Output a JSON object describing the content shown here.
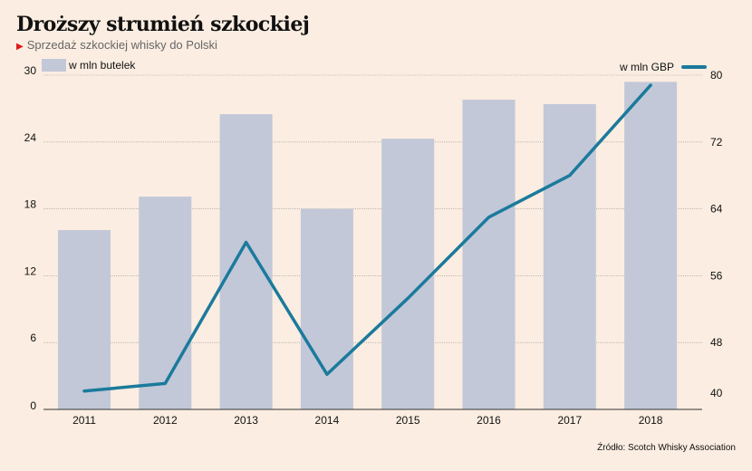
{
  "title": "Droższy strumień szkockiej",
  "subtitle": "Sprzedaż szkockiej whisky do Polski",
  "source": "Źródło: Scotch Whisky Association",
  "chart_data": {
    "type": "bar+line",
    "categories": [
      "2011",
      "2012",
      "2013",
      "2014",
      "2015",
      "2016",
      "2017",
      "2018"
    ],
    "series": [
      {
        "name": "w mln butelek",
        "type": "bar",
        "axis": "left",
        "color": "#c2c8d8",
        "values": [
          16.1,
          19.1,
          26.5,
          18.0,
          24.3,
          27.8,
          27.4,
          29.4
        ]
      },
      {
        "name": "w mln GBP",
        "type": "line",
        "axis": "right",
        "color": "#1b7a9c",
        "values": [
          42.2,
          43.1,
          60.0,
          44.2,
          53.3,
          63.0,
          68.0,
          78.8
        ]
      }
    ],
    "left_axis": {
      "range": [
        0,
        30
      ],
      "ticks": [
        "0",
        "6",
        "12",
        "18",
        "24",
        "30"
      ]
    },
    "right_axis": {
      "range": [
        40,
        80
      ],
      "ticks": [
        "40",
        "48",
        "56",
        "64",
        "72",
        "80"
      ]
    },
    "grid": true,
    "legend": [
      "top-left",
      "top-right"
    ]
  }
}
